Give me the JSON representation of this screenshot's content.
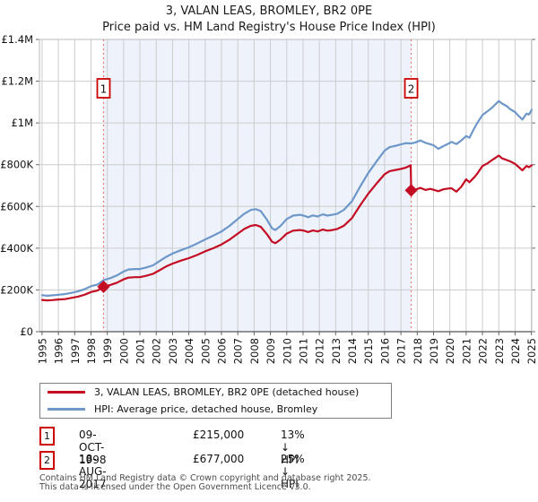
{
  "header": {
    "title": "3, VALAN LEAS, BROMLEY, BR2 0PE",
    "subtitle": "Price paid vs. HM Land Registry's House Price Index (HPI)"
  },
  "chart_data": {
    "type": "line",
    "title": "3, VALAN LEAS, BROMLEY, BR2 0PE",
    "subtitle": "Price paid vs. HM Land Registry's House Price Index (HPI)",
    "xlim": [
      1994.84,
      2025.02
    ],
    "ylim": [
      0,
      1400000
    ],
    "x_ticks": [
      "1995",
      "1996",
      "1997",
      "1998",
      "1999",
      "2000",
      "2001",
      "2002",
      "2003",
      "2004",
      "2005",
      "2006",
      "2007",
      "2008",
      "2009",
      "2010",
      "2011",
      "2012",
      "2013",
      "2014",
      "2015",
      "2016",
      "2017",
      "2018",
      "2019",
      "2020",
      "2021",
      "2022",
      "2023",
      "2024",
      "2025"
    ],
    "y_ticks": [
      {
        "value": 0,
        "label": "£0"
      },
      {
        "value": 200000,
        "label": "£200K"
      },
      {
        "value": 400000,
        "label": "£400K"
      },
      {
        "value": 600000,
        "label": "£600K"
      },
      {
        "value": 800000,
        "label": "£800K"
      },
      {
        "value": 1000000,
        "label": "£1M"
      },
      {
        "value": 1200000,
        "label": "£1.2M"
      },
      {
        "value": 1400000,
        "label": "£1.4M"
      }
    ],
    "grid": true,
    "grid_color": "#cccccc",
    "axis_color": "#666666",
    "band": {
      "from": 1998.77,
      "to": 2017.63,
      "color": "#edf2fb"
    },
    "sale_line_color": "#ee7777",
    "sale_box_border": "#cc0000",
    "sales": [
      {
        "n": "1",
        "x": 1998.77,
        "y": 215000
      },
      {
        "n": "2",
        "x": 2017.63,
        "y": 677000
      }
    ],
    "series": [
      {
        "name": "HPI: Average price, detached house, Bromley",
        "color": "#6d97c9",
        "points": [
          [
            1995.0,
            175000
          ],
          [
            1995.3,
            172000
          ],
          [
            1995.6,
            174000
          ],
          [
            1996.0,
            177000
          ],
          [
            1996.4,
            180000
          ],
          [
            1996.8,
            186000
          ],
          [
            1997.2,
            193000
          ],
          [
            1997.6,
            203000
          ],
          [
            1998.0,
            218000
          ],
          [
            1998.4,
            226000
          ],
          [
            1998.77,
            247000
          ],
          [
            1999.2,
            257000
          ],
          [
            1999.6,
            270000
          ],
          [
            2000.0,
            288000
          ],
          [
            2000.3,
            298000
          ],
          [
            2000.7,
            300000
          ],
          [
            2001.0,
            300000
          ],
          [
            2001.4,
            308000
          ],
          [
            2001.8,
            318000
          ],
          [
            2002.2,
            338000
          ],
          [
            2002.6,
            358000
          ],
          [
            2003.0,
            374000
          ],
          [
            2003.5,
            390000
          ],
          [
            2004.0,
            404000
          ],
          [
            2004.5,
            422000
          ],
          [
            2005.0,
            442000
          ],
          [
            2005.5,
            460000
          ],
          [
            2006.0,
            480000
          ],
          [
            2006.5,
            507000
          ],
          [
            2007.0,
            540000
          ],
          [
            2007.4,
            565000
          ],
          [
            2007.8,
            583000
          ],
          [
            2008.1,
            587000
          ],
          [
            2008.4,
            578000
          ],
          [
            2008.8,
            535000
          ],
          [
            2009.1,
            495000
          ],
          [
            2009.3,
            487000
          ],
          [
            2009.6,
            505000
          ],
          [
            2010.0,
            540000
          ],
          [
            2010.4,
            556000
          ],
          [
            2010.8,
            560000
          ],
          [
            2011.1,
            555000
          ],
          [
            2011.3,
            548000
          ],
          [
            2011.6,
            557000
          ],
          [
            2011.9,
            552000
          ],
          [
            2012.2,
            562000
          ],
          [
            2012.5,
            556000
          ],
          [
            2012.8,
            560000
          ],
          [
            2013.1,
            565000
          ],
          [
            2013.5,
            583000
          ],
          [
            2014.0,
            625000
          ],
          [
            2014.5,
            695000
          ],
          [
            2015.0,
            760000
          ],
          [
            2015.5,
            815000
          ],
          [
            2016.0,
            867000
          ],
          [
            2016.3,
            884000
          ],
          [
            2016.7,
            891000
          ],
          [
            2017.0,
            897000
          ],
          [
            2017.3,
            903000
          ],
          [
            2017.63,
            902000
          ],
          [
            2017.9,
            907000
          ],
          [
            2018.2,
            916000
          ],
          [
            2018.5,
            905000
          ],
          [
            2018.8,
            898000
          ],
          [
            2019.0,
            893000
          ],
          [
            2019.3,
            876000
          ],
          [
            2019.6,
            889000
          ],
          [
            2019.9,
            900000
          ],
          [
            2020.1,
            909000
          ],
          [
            2020.4,
            899000
          ],
          [
            2020.7,
            916000
          ],
          [
            2021.0,
            937000
          ],
          [
            2021.2,
            929000
          ],
          [
            2021.5,
            975000
          ],
          [
            2021.7,
            1002000
          ],
          [
            2022.0,
            1038000
          ],
          [
            2022.3,
            1055000
          ],
          [
            2022.6,
            1074000
          ],
          [
            2023.0,
            1105000
          ],
          [
            2023.2,
            1093000
          ],
          [
            2023.5,
            1080000
          ],
          [
            2023.7,
            1066000
          ],
          [
            2024.0,
            1052000
          ],
          [
            2024.2,
            1035000
          ],
          [
            2024.45,
            1016000
          ],
          [
            2024.7,
            1045000
          ],
          [
            2024.85,
            1040000
          ],
          [
            2025.02,
            1063000
          ]
        ]
      },
      {
        "name": "3, VALAN LEAS, BROMLEY, BR2 0PE (detached house)",
        "color": "#c40d23",
        "points": [
          [
            1995.0,
            152000
          ],
          [
            1995.3,
            150000
          ],
          [
            1995.6,
            151000
          ],
          [
            1996.0,
            154000
          ],
          [
            1996.4,
            156000
          ],
          [
            1996.8,
            162000
          ],
          [
            1997.2,
            168000
          ],
          [
            1997.6,
            177000
          ],
          [
            1998.0,
            190000
          ],
          [
            1998.4,
            197000
          ],
          [
            1998.77,
            215000
          ],
          [
            1999.2,
            224000
          ],
          [
            1999.6,
            235000
          ],
          [
            2000.0,
            251000
          ],
          [
            2000.3,
            259000
          ],
          [
            2000.7,
            261000
          ],
          [
            2001.0,
            261000
          ],
          [
            2001.4,
            268000
          ],
          [
            2001.8,
            277000
          ],
          [
            2002.2,
            294000
          ],
          [
            2002.6,
            312000
          ],
          [
            2003.0,
            326000
          ],
          [
            2003.5,
            340000
          ],
          [
            2004.0,
            352000
          ],
          [
            2004.5,
            367000
          ],
          [
            2005.0,
            385000
          ],
          [
            2005.5,
            400000
          ],
          [
            2006.0,
            418000
          ],
          [
            2006.5,
            441000
          ],
          [
            2007.0,
            470000
          ],
          [
            2007.4,
            492000
          ],
          [
            2007.8,
            507000
          ],
          [
            2008.1,
            511000
          ],
          [
            2008.4,
            503000
          ],
          [
            2008.8,
            466000
          ],
          [
            2009.1,
            431000
          ],
          [
            2009.3,
            424000
          ],
          [
            2009.6,
            440000
          ],
          [
            2010.0,
            470000
          ],
          [
            2010.4,
            484000
          ],
          [
            2010.8,
            487000
          ],
          [
            2011.1,
            483000
          ],
          [
            2011.3,
            477000
          ],
          [
            2011.6,
            485000
          ],
          [
            2011.9,
            480000
          ],
          [
            2012.2,
            489000
          ],
          [
            2012.5,
            484000
          ],
          [
            2012.8,
            487000
          ],
          [
            2013.1,
            492000
          ],
          [
            2013.5,
            507000
          ],
          [
            2014.0,
            544000
          ],
          [
            2014.5,
            605000
          ],
          [
            2015.0,
            661000
          ],
          [
            2015.5,
            709000
          ],
          [
            2016.0,
            754000
          ],
          [
            2016.3,
            769000
          ],
          [
            2016.7,
            775000
          ],
          [
            2017.0,
            780000
          ],
          [
            2017.3,
            786000
          ],
          [
            2017.6,
            797000
          ],
          [
            2017.63,
            677000
          ],
          [
            2017.9,
            681000
          ],
          [
            2018.2,
            689000
          ],
          [
            2018.5,
            679000
          ],
          [
            2018.8,
            684000
          ],
          [
            2019.0,
            680000
          ],
          [
            2019.3,
            673000
          ],
          [
            2019.6,
            682000
          ],
          [
            2019.9,
            686000
          ],
          [
            2020.1,
            687000
          ],
          [
            2020.4,
            671000
          ],
          [
            2020.7,
            694000
          ],
          [
            2021.0,
            730000
          ],
          [
            2021.2,
            716000
          ],
          [
            2021.5,
            740000
          ],
          [
            2021.7,
            759000
          ],
          [
            2022.0,
            794000
          ],
          [
            2022.3,
            806000
          ],
          [
            2022.6,
            823000
          ],
          [
            2023.0,
            844000
          ],
          [
            2023.2,
            830000
          ],
          [
            2023.5,
            822000
          ],
          [
            2023.7,
            816000
          ],
          [
            2024.0,
            804000
          ],
          [
            2024.2,
            790000
          ],
          [
            2024.45,
            773000
          ],
          [
            2024.7,
            794000
          ],
          [
            2024.85,
            788000
          ],
          [
            2025.02,
            797000
          ]
        ]
      }
    ],
    "legend_position": "bottom"
  },
  "legend": {
    "entries": [
      {
        "label": "3, VALAN LEAS, BROMLEY, BR2 0PE (detached house)",
        "color": "#c40d23"
      },
      {
        "label": "HPI: Average price, detached house, Bromley",
        "color": "#6d97c9"
      }
    ]
  },
  "annotations": [
    {
      "num": "1",
      "date": "09-OCT-1998",
      "price": "£215,000",
      "delta": "13% ↓ HPI"
    },
    {
      "num": "2",
      "date": "18-AUG-2017",
      "price": "£677,000",
      "delta": "25% ↓ HPI"
    }
  ],
  "footer": {
    "line1": "Contains HM Land Registry data © Crown copyright and database right 2025.",
    "line2": "This data is licensed under the Open Government Licence v3.0."
  }
}
